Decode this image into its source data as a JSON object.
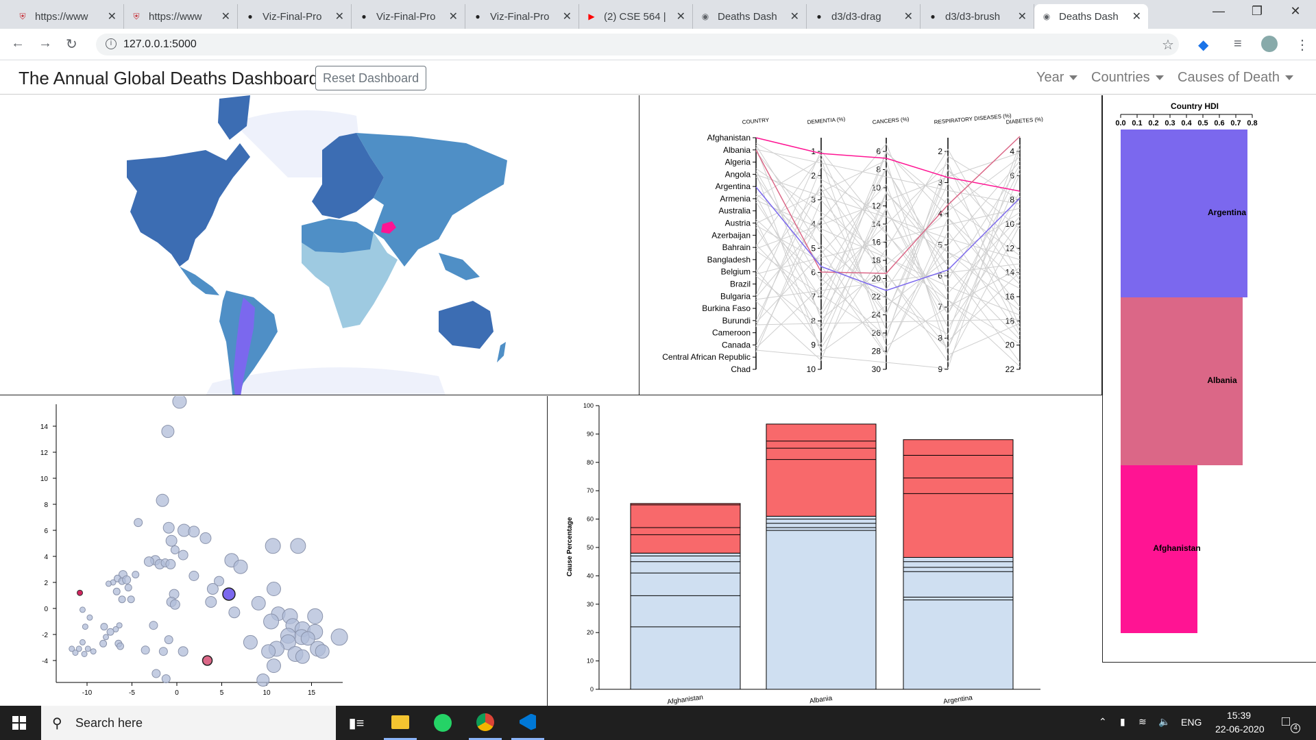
{
  "browser": {
    "tabs": [
      {
        "title": "https://www",
        "icon": "shield-icon",
        "color": "#c4262e"
      },
      {
        "title": "https://www",
        "icon": "shield-icon",
        "color": "#c4262e"
      },
      {
        "title": "Viz-Final-Pro",
        "icon": "github-icon",
        "color": "#222"
      },
      {
        "title": "Viz-Final-Pro",
        "icon": "github-icon",
        "color": "#222"
      },
      {
        "title": "Viz-Final-Pro",
        "icon": "github-icon",
        "color": "#222"
      },
      {
        "title": "(2) CSE 564 |",
        "icon": "youtube-icon",
        "color": "#ff0000"
      },
      {
        "title": "Deaths Dash",
        "icon": "globe-icon",
        "color": "#5f6368"
      },
      {
        "title": "d3/d3-drag",
        "icon": "github-icon",
        "color": "#222"
      },
      {
        "title": "d3/d3-brush",
        "icon": "github-icon",
        "color": "#222"
      },
      {
        "title": "Deaths Dash",
        "icon": "globe-icon",
        "color": "#5f6368"
      }
    ],
    "url": "127.0.0.1:5000"
  },
  "navbar": {
    "title": "The Annual Global Deaths Dashboard",
    "reset_label": "Reset Dashboard",
    "menus": [
      "Year",
      "Countries",
      "Causes of Death"
    ]
  },
  "colors": {
    "afghanistan": "#ff1493",
    "albania": "#db6787",
    "argentina": "#7b68ee",
    "bar_red": "#f8696b",
    "bar_blue": "#cfdff1",
    "bubble": "#b0bcd8",
    "map_dark": "#3c6db3",
    "map_mid": "#4f8fc6",
    "map_light": "#9ecae1"
  },
  "parallel": {
    "axes": [
      {
        "label": "COUNTRY",
        "ticks": [
          "Afghanistan",
          "Albania",
          "Algeria",
          "Angola",
          "Argentina",
          "Armenia",
          "Australia",
          "Austria",
          "Azerbaijan",
          "Bahrain",
          "Bangladesh",
          "Belgium",
          "Brazil",
          "Bulgaria",
          "Burkina Faso",
          "Burundi",
          "Cameroon",
          "Canada",
          "Central African Republic",
          "Chad"
        ]
      },
      {
        "label": "DEMENTIA (%)",
        "ticks": [
          "1",
          "2",
          "3",
          "4",
          "5",
          "6",
          "7",
          "8",
          "9",
          "10"
        ]
      },
      {
        "label": "CANCERS (%)",
        "ticks": [
          "6",
          "8",
          "10",
          "12",
          "14",
          "16",
          "18",
          "20",
          "22",
          "24",
          "26",
          "28",
          "30"
        ]
      },
      {
        "label": "RESPIRATORY DISEASES (%)",
        "ticks": [
          "2",
          "3",
          "4",
          "5",
          "6",
          "7",
          "8",
          "9"
        ]
      },
      {
        "label": "DIABETES (%)",
        "ticks": [
          "4",
          "6",
          "8",
          "10",
          "12",
          "14",
          "16",
          "18",
          "20",
          "22"
        ]
      }
    ]
  },
  "scatter": {
    "xticks": [
      "-10",
      "-5",
      "0",
      "5",
      "10",
      "15"
    ],
    "yticks": [
      "-4",
      "-2",
      "0",
      "2",
      "4",
      "6",
      "8",
      "10",
      "12",
      "14"
    ]
  },
  "stacked": {
    "ylabel": "Cause Percentage",
    "yticks": [
      "0",
      "10",
      "20",
      "30",
      "40",
      "50",
      "60",
      "70",
      "80",
      "90",
      "100"
    ],
    "categories": [
      "Afghanistan",
      "Albania",
      "Argentina"
    ]
  },
  "hdi": {
    "title": "Country HDI",
    "ticks": [
      "0.0",
      "0.1",
      "0.2",
      "0.3",
      "0.4",
      "0.5",
      "0.6",
      "0.7",
      "0.8"
    ],
    "bars": [
      {
        "label": "Argentina",
        "color": "#7b68ee"
      },
      {
        "label": "Albania",
        "color": "#db6787"
      },
      {
        "label": "Afghanistan",
        "color": "#ff1493"
      }
    ]
  },
  "taskbar": {
    "search_placeholder": "Search here",
    "language": "ENG",
    "time": "15:39",
    "date": "22-06-2020",
    "notifications": "4"
  }
}
